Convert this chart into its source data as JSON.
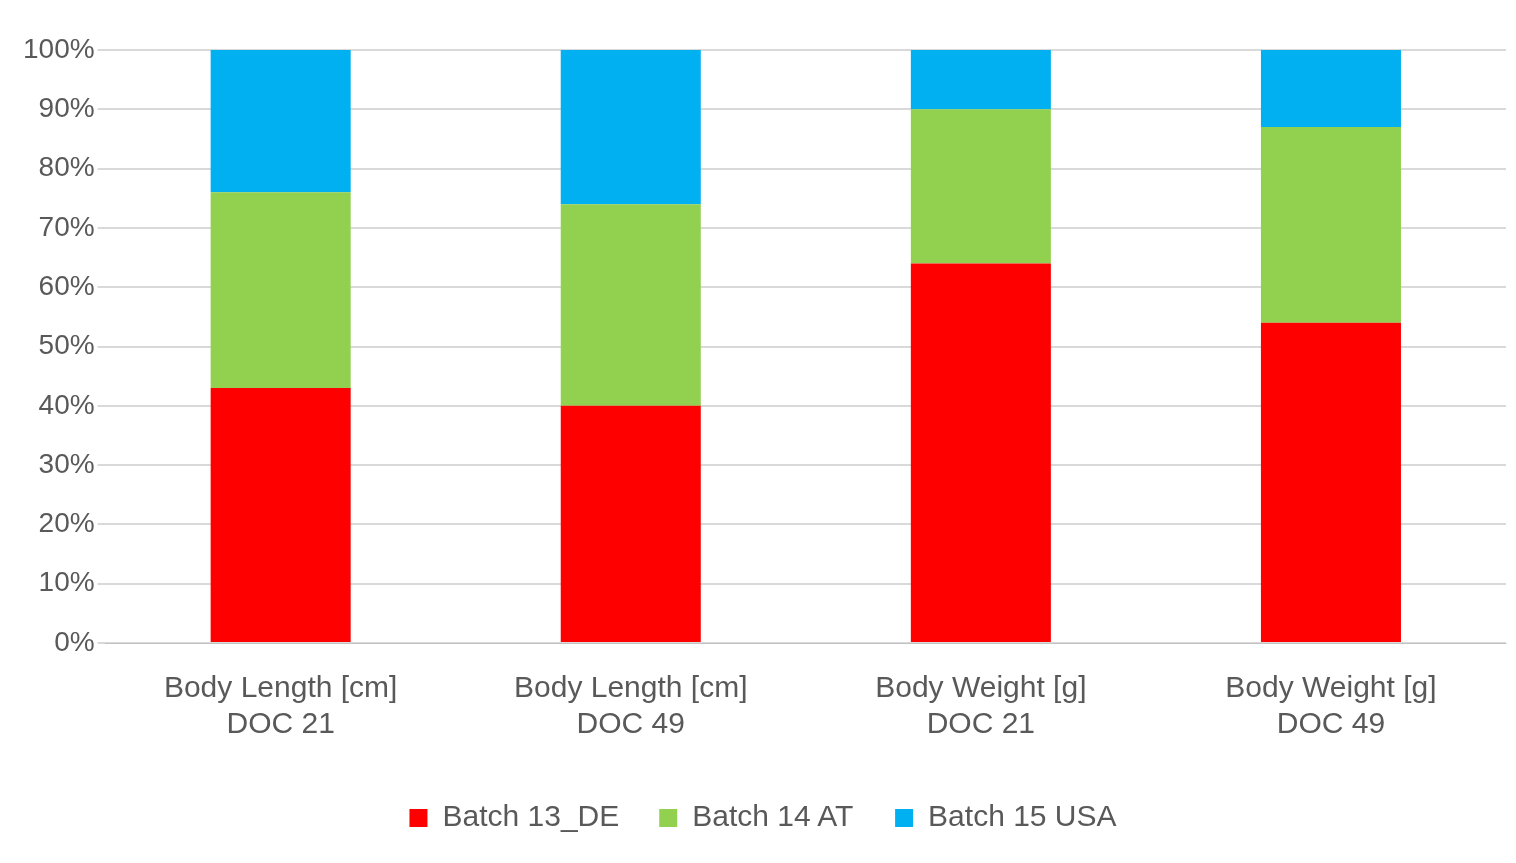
{
  "chart_data": {
    "type": "bar",
    "stacked": true,
    "categories": [
      "Body Length [cm]\nDOC 21",
      "Body Length [cm]\nDOC 49",
      "Body Weight [g]\nDOC 21",
      "Body Weight [g]\nDOC 49"
    ],
    "series": [
      {
        "name": "Batch 13_DE",
        "color": "#ff0000",
        "values": [
          43,
          40,
          64,
          54
        ]
      },
      {
        "name": "Batch 14 AT",
        "color": "#92d050",
        "values": [
          33,
          34,
          26,
          33
        ]
      },
      {
        "name": "Batch 15 USA",
        "color": "#00b0f0",
        "values": [
          24,
          26,
          10,
          13
        ]
      }
    ],
    "ylim": [
      0,
      100
    ],
    "yticks": [
      {
        "value": 0,
        "label": "0%"
      },
      {
        "value": 10,
        "label": "10%"
      },
      {
        "value": 20,
        "label": "20%"
      },
      {
        "value": 30,
        "label": "30%"
      },
      {
        "value": 40,
        "label": "40%"
      },
      {
        "value": 50,
        "label": "50%"
      },
      {
        "value": 60,
        "label": "60%"
      },
      {
        "value": 70,
        "label": "70%"
      },
      {
        "value": 80,
        "label": "80%"
      },
      {
        "value": 90,
        "label": "90%"
      },
      {
        "value": 100,
        "label": "100%"
      }
    ],
    "grid": "y",
    "legend": "bottom"
  }
}
